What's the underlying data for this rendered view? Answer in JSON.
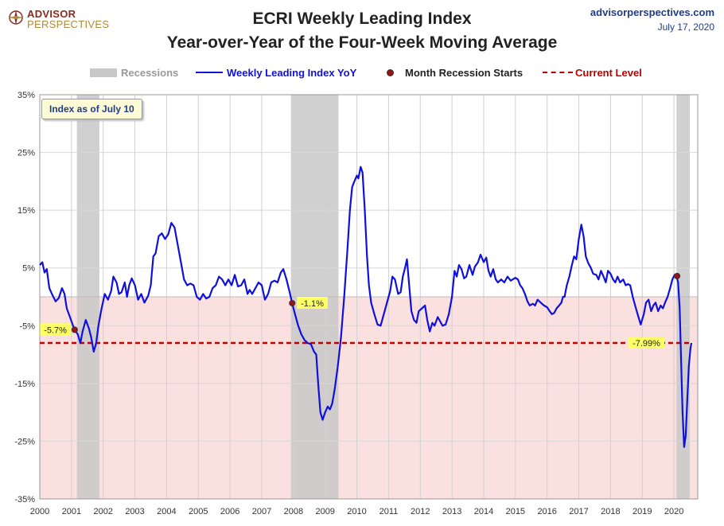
{
  "header": {
    "logo_line1": "ADVISOR",
    "logo_line2": "PERSPECTIVES",
    "site": "advisorperspectives.com",
    "date": "July 17, 2020",
    "title_line1": "ECRI Weekly Leading Index",
    "title_line2": "Year-over-Year of the Four-Week Moving Average"
  },
  "legend": {
    "recessions": "Recessions",
    "series": "Weekly Leading Index YoY",
    "marker": "Month Recession Starts",
    "current": "Current Level"
  },
  "note": "Index as of July 10",
  "colors": {
    "line": "#1010dd",
    "recession": "#c8c8c8",
    "negative_band": "#fbe0e0",
    "current_level": "#c00000",
    "marker": "#a01010",
    "callout": "#ffff66",
    "text": "#1f3c88"
  },
  "chart_data": {
    "type": "line",
    "x_range": [
      2000.0,
      2020.75
    ],
    "ylim": [
      -35,
      35
    ],
    "y_ticks": [
      "35%",
      "25%",
      "15%",
      "5%",
      "-5%",
      "-15%",
      "-25%",
      "-35%"
    ],
    "y_tick_values": [
      35,
      25,
      15,
      5,
      -5,
      -15,
      -25,
      -35
    ],
    "x_ticks": [
      "2000",
      "2001",
      "2002",
      "2003",
      "2004",
      "2005",
      "2006",
      "2007",
      "2008",
      "2009",
      "2010",
      "2011",
      "2012",
      "2013",
      "2014",
      "2015",
      "2016",
      "2017",
      "2018",
      "2019",
      "2020"
    ],
    "recessions": [
      [
        2001.17,
        2001.88
      ],
      [
        2007.92,
        2009.42
      ],
      [
        2020.08,
        2020.5
      ]
    ],
    "current_level": -7.99,
    "current_label": "-7.99%",
    "recession_starts": [
      {
        "x": 2001.1,
        "y": -5.7,
        "label": "-5.7%"
      },
      {
        "x": 2007.96,
        "y": -1.1,
        "label": "-1.1%"
      },
      {
        "x": 2020.1,
        "y": 3.6,
        "label": ""
      }
    ],
    "series": [
      {
        "name": "Weekly Leading Index YoY",
        "points": [
          [
            2000.0,
            5.5
          ],
          [
            2000.08,
            6.0
          ],
          [
            2000.15,
            4.2
          ],
          [
            2000.22,
            4.8
          ],
          [
            2000.3,
            1.5
          ],
          [
            2000.4,
            0.3
          ],
          [
            2000.5,
            -0.8
          ],
          [
            2000.6,
            -0.2
          ],
          [
            2000.7,
            1.5
          ],
          [
            2000.78,
            0.5
          ],
          [
            2000.85,
            -2.0
          ],
          [
            2000.95,
            -3.5
          ],
          [
            2001.05,
            -5.0
          ],
          [
            2001.1,
            -5.7
          ],
          [
            2001.2,
            -6.5
          ],
          [
            2001.28,
            -8.0
          ],
          [
            2001.35,
            -6.0
          ],
          [
            2001.45,
            -4.0
          ],
          [
            2001.55,
            -5.5
          ],
          [
            2001.62,
            -7.0
          ],
          [
            2001.7,
            -9.5
          ],
          [
            2001.78,
            -8.0
          ],
          [
            2001.85,
            -5.0
          ],
          [
            2001.95,
            -2.0
          ],
          [
            2002.05,
            0.5
          ],
          [
            2002.15,
            -0.5
          ],
          [
            2002.25,
            1.0
          ],
          [
            2002.32,
            3.5
          ],
          [
            2002.42,
            2.5
          ],
          [
            2002.5,
            0.5
          ],
          [
            2002.58,
            0.8
          ],
          [
            2002.68,
            2.5
          ],
          [
            2002.75,
            0.0
          ],
          [
            2002.82,
            2.0
          ],
          [
            2002.9,
            3.2
          ],
          [
            2003.0,
            2.0
          ],
          [
            2003.1,
            -0.5
          ],
          [
            2003.2,
            0.5
          ],
          [
            2003.3,
            -1.0
          ],
          [
            2003.42,
            0.2
          ],
          [
            2003.5,
            2.0
          ],
          [
            2003.58,
            7.0
          ],
          [
            2003.65,
            7.5
          ],
          [
            2003.75,
            10.5
          ],
          [
            2003.85,
            11.0
          ],
          [
            2003.95,
            10.0
          ],
          [
            2004.05,
            10.8
          ],
          [
            2004.15,
            12.8
          ],
          [
            2004.25,
            12.0
          ],
          [
            2004.35,
            9.0
          ],
          [
            2004.45,
            6.0
          ],
          [
            2004.55,
            3.0
          ],
          [
            2004.65,
            2.0
          ],
          [
            2004.75,
            2.3
          ],
          [
            2004.85,
            2.0
          ],
          [
            2004.95,
            0.0
          ],
          [
            2005.05,
            -0.5
          ],
          [
            2005.15,
            0.5
          ],
          [
            2005.25,
            -0.3
          ],
          [
            2005.35,
            0.0
          ],
          [
            2005.45,
            1.5
          ],
          [
            2005.55,
            2.0
          ],
          [
            2005.65,
            3.5
          ],
          [
            2005.75,
            3.0
          ],
          [
            2005.85,
            2.0
          ],
          [
            2005.95,
            3.0
          ],
          [
            2006.05,
            2.0
          ],
          [
            2006.15,
            3.8
          ],
          [
            2006.25,
            1.8
          ],
          [
            2006.35,
            2.0
          ],
          [
            2006.45,
            3.0
          ],
          [
            2006.55,
            0.5
          ],
          [
            2006.62,
            1.2
          ],
          [
            2006.7,
            0.5
          ],
          [
            2006.8,
            1.5
          ],
          [
            2006.9,
            2.5
          ],
          [
            2007.0,
            2.0
          ],
          [
            2007.1,
            -0.5
          ],
          [
            2007.2,
            0.5
          ],
          [
            2007.3,
            2.5
          ],
          [
            2007.4,
            2.8
          ],
          [
            2007.5,
            2.5
          ],
          [
            2007.6,
            4.2
          ],
          [
            2007.68,
            4.8
          ],
          [
            2007.78,
            3.0
          ],
          [
            2007.88,
            0.8
          ],
          [
            2007.96,
            -1.1
          ],
          [
            2008.05,
            -3.0
          ],
          [
            2008.15,
            -5.0
          ],
          [
            2008.25,
            -6.5
          ],
          [
            2008.35,
            -7.5
          ],
          [
            2008.45,
            -8.0
          ],
          [
            2008.55,
            -8.2
          ],
          [
            2008.65,
            -9.5
          ],
          [
            2008.72,
            -10.0
          ],
          [
            2008.78,
            -15.0
          ],
          [
            2008.85,
            -20.0
          ],
          [
            2008.92,
            -21.3
          ],
          [
            2009.0,
            -20.0
          ],
          [
            2009.08,
            -19.0
          ],
          [
            2009.15,
            -19.5
          ],
          [
            2009.22,
            -18.5
          ],
          [
            2009.3,
            -16.0
          ],
          [
            2009.4,
            -12.0
          ],
          [
            2009.5,
            -7.0
          ],
          [
            2009.6,
            0.0
          ],
          [
            2009.7,
            8.0
          ],
          [
            2009.78,
            15.0
          ],
          [
            2009.85,
            19.0
          ],
          [
            2009.92,
            20.0
          ],
          [
            2010.0,
            21.0
          ],
          [
            2010.05,
            20.5
          ],
          [
            2010.12,
            22.5
          ],
          [
            2010.18,
            21.5
          ],
          [
            2010.25,
            15.0
          ],
          [
            2010.32,
            7.0
          ],
          [
            2010.38,
            2.0
          ],
          [
            2010.45,
            -1.0
          ],
          [
            2010.55,
            -3.0
          ],
          [
            2010.65,
            -4.8
          ],
          [
            2010.75,
            -5.0
          ],
          [
            2010.85,
            -3.0
          ],
          [
            2010.95,
            -1.0
          ],
          [
            2011.05,
            1.0
          ],
          [
            2011.12,
            3.5
          ],
          [
            2011.2,
            3.0
          ],
          [
            2011.3,
            0.5
          ],
          [
            2011.38,
            0.8
          ],
          [
            2011.45,
            3.5
          ],
          [
            2011.52,
            5.0
          ],
          [
            2011.58,
            6.5
          ],
          [
            2011.65,
            2.0
          ],
          [
            2011.72,
            -2.5
          ],
          [
            2011.8,
            -4.0
          ],
          [
            2011.88,
            -4.5
          ],
          [
            2011.95,
            -2.5
          ],
          [
            2012.05,
            -2.0
          ],
          [
            2012.15,
            -1.5
          ],
          [
            2012.22,
            -4.0
          ],
          [
            2012.3,
            -6.0
          ],
          [
            2012.38,
            -4.5
          ],
          [
            2012.45,
            -5.0
          ],
          [
            2012.55,
            -3.5
          ],
          [
            2012.62,
            -4.2
          ],
          [
            2012.7,
            -5.0
          ],
          [
            2012.8,
            -4.8
          ],
          [
            2012.9,
            -3.0
          ],
          [
            2013.0,
            0.0
          ],
          [
            2013.08,
            4.5
          ],
          [
            2013.15,
            3.5
          ],
          [
            2013.22,
            5.5
          ],
          [
            2013.3,
            4.8
          ],
          [
            2013.38,
            3.2
          ],
          [
            2013.45,
            3.5
          ],
          [
            2013.55,
            5.5
          ],
          [
            2013.65,
            3.8
          ],
          [
            2013.72,
            5.2
          ],
          [
            2013.82,
            6.0
          ],
          [
            2013.9,
            7.3
          ],
          [
            2014.0,
            6.0
          ],
          [
            2014.08,
            6.8
          ],
          [
            2014.15,
            4.5
          ],
          [
            2014.22,
            3.5
          ],
          [
            2014.3,
            4.8
          ],
          [
            2014.38,
            3.0
          ],
          [
            2014.45,
            2.5
          ],
          [
            2014.55,
            3.0
          ],
          [
            2014.65,
            2.5
          ],
          [
            2014.75,
            3.5
          ],
          [
            2014.85,
            2.8
          ],
          [
            2015.0,
            3.3
          ],
          [
            2015.08,
            3.0
          ],
          [
            2015.15,
            2.0
          ],
          [
            2015.22,
            1.5
          ],
          [
            2015.3,
            0.5
          ],
          [
            2015.38,
            -0.8
          ],
          [
            2015.45,
            -1.5
          ],
          [
            2015.55,
            -1.2
          ],
          [
            2015.62,
            -1.5
          ],
          [
            2015.7,
            -0.5
          ],
          [
            2015.8,
            -1.0
          ],
          [
            2015.9,
            -1.5
          ],
          [
            2016.0,
            -1.8
          ],
          [
            2016.08,
            -2.5
          ],
          [
            2016.15,
            -3.0
          ],
          [
            2016.22,
            -2.8
          ],
          [
            2016.3,
            -2.0
          ],
          [
            2016.38,
            -1.5
          ],
          [
            2016.45,
            -1.0
          ],
          [
            2016.5,
            0.0
          ],
          [
            2016.55,
            0.0
          ],
          [
            2016.62,
            2.0
          ],
          [
            2016.7,
            3.5
          ],
          [
            2016.78,
            5.5
          ],
          [
            2016.85,
            7.0
          ],
          [
            2016.92,
            6.5
          ],
          [
            2017.0,
            10.0
          ],
          [
            2017.08,
            12.5
          ],
          [
            2017.15,
            10.5
          ],
          [
            2017.22,
            7.0
          ],
          [
            2017.3,
            5.8
          ],
          [
            2017.38,
            5.0
          ],
          [
            2017.45,
            4.0
          ],
          [
            2017.55,
            3.8
          ],
          [
            2017.62,
            3.0
          ],
          [
            2017.7,
            4.5
          ],
          [
            2017.78,
            3.5
          ],
          [
            2017.85,
            2.5
          ],
          [
            2017.92,
            4.5
          ],
          [
            2018.0,
            4.0
          ],
          [
            2018.08,
            3.0
          ],
          [
            2018.15,
            2.5
          ],
          [
            2018.22,
            3.5
          ],
          [
            2018.3,
            2.5
          ],
          [
            2018.4,
            3.0
          ],
          [
            2018.48,
            2.0
          ],
          [
            2018.55,
            2.2
          ],
          [
            2018.62,
            2.0
          ],
          [
            2018.7,
            0.0
          ],
          [
            2018.8,
            -2.0
          ],
          [
            2018.88,
            -3.5
          ],
          [
            2018.95,
            -4.8
          ],
          [
            2019.05,
            -3.0
          ],
          [
            2019.12,
            -1.0
          ],
          [
            2019.2,
            -0.5
          ],
          [
            2019.28,
            -2.5
          ],
          [
            2019.35,
            -1.5
          ],
          [
            2019.42,
            -1.0
          ],
          [
            2019.5,
            -2.5
          ],
          [
            2019.58,
            -1.5
          ],
          [
            2019.65,
            -2.0
          ],
          [
            2019.72,
            -1.0
          ],
          [
            2019.8,
            0.0
          ],
          [
            2019.88,
            1.5
          ],
          [
            2019.95,
            3.0
          ],
          [
            2020.02,
            3.8
          ],
          [
            2020.08,
            3.6
          ],
          [
            2020.13,
            2.5
          ],
          [
            2020.18,
            -2.0
          ],
          [
            2020.22,
            -10.0
          ],
          [
            2020.27,
            -20.0
          ],
          [
            2020.32,
            -26.0
          ],
          [
            2020.37,
            -24.0
          ],
          [
            2020.42,
            -18.0
          ],
          [
            2020.47,
            -12.0
          ],
          [
            2020.52,
            -9.0
          ],
          [
            2020.55,
            -7.99
          ]
        ]
      }
    ]
  }
}
